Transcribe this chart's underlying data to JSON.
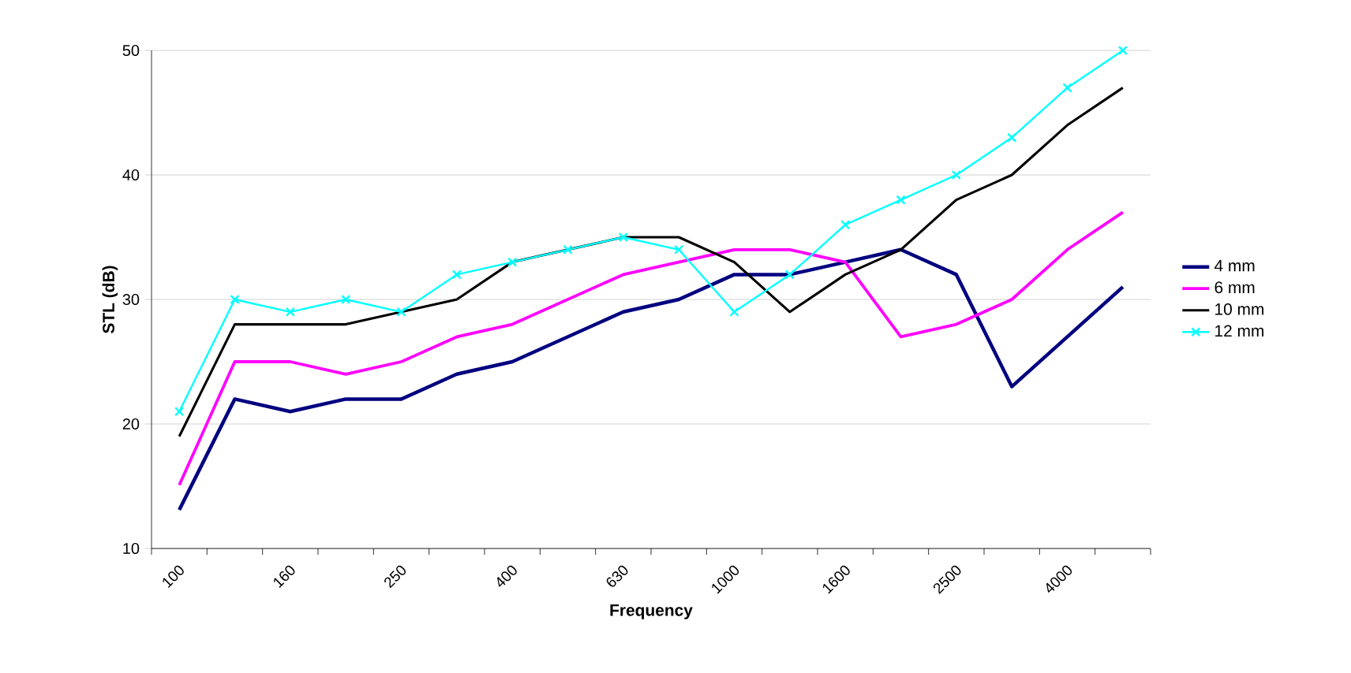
{
  "chart_data": {
    "type": "line",
    "xlabel": "Frequency",
    "ylabel": "STL (dB)",
    "categories": [
      "100",
      null,
      "160",
      null,
      "250",
      null,
      "400",
      null,
      "630",
      null,
      "1000",
      null,
      "1600",
      null,
      "2500",
      null,
      "4000",
      null
    ],
    "ylim": [
      10,
      50
    ],
    "yticks": [
      10,
      20,
      30,
      40,
      50
    ],
    "grid": "y",
    "legend": "right",
    "series": [
      {
        "name": "4 mm",
        "color": "#000080",
        "marker": "none",
        "values": [
          13.1,
          22,
          21,
          22,
          22,
          24,
          25,
          27,
          29,
          30,
          32,
          32,
          33,
          34,
          32,
          23,
          27,
          31
        ]
      },
      {
        "name": "6 mm",
        "color": "#ff00ff",
        "marker": "none",
        "values": [
          15.1,
          25,
          25,
          24,
          25,
          27,
          28,
          30,
          32,
          33,
          34,
          34,
          33,
          27,
          28,
          30,
          34,
          37
        ]
      },
      {
        "name": "10 mm",
        "color": "#000000",
        "marker": "none",
        "values": [
          19,
          28,
          28,
          28,
          29,
          30,
          33,
          34,
          35,
          35,
          33,
          29,
          32,
          34,
          38,
          40,
          44,
          47
        ]
      },
      {
        "name": "12 mm",
        "color": "#00ffff",
        "marker": "cross",
        "values": [
          21,
          30,
          29,
          30,
          29,
          32,
          33,
          34,
          35,
          34,
          29,
          32,
          36,
          38,
          40,
          43,
          47,
          50
        ]
      }
    ]
  }
}
